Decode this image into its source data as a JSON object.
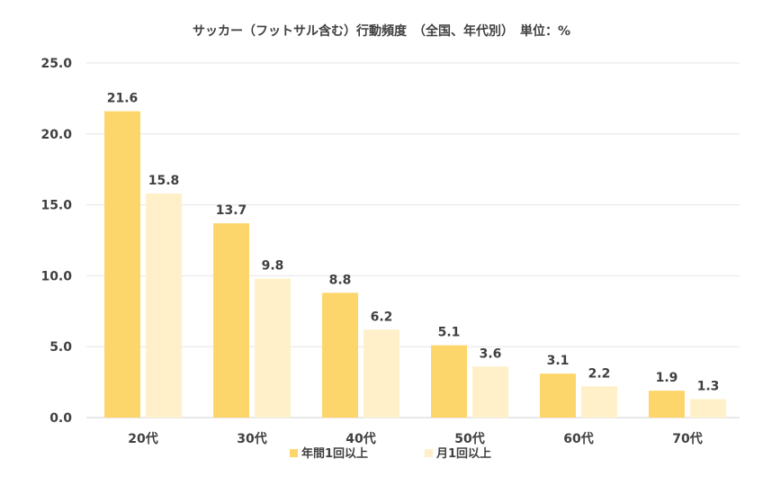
{
  "chart_data": {
    "type": "bar",
    "title": "サッカー（フットサル含む）行動頻度　（全国、年代別）　単位：%",
    "categories": [
      "20代",
      "30代",
      "40代",
      "50代",
      "60代",
      "70代"
    ],
    "series": [
      {
        "name": "年間1回以上",
        "color": "#FDD66B",
        "values": [
          21.6,
          13.7,
          8.8,
          5.1,
          3.1,
          1.9
        ]
      },
      {
        "name": "月1回以上",
        "color": "#FFF0C9",
        "values": [
          15.8,
          9.8,
          6.2,
          3.6,
          2.2,
          1.3
        ]
      }
    ],
    "yticks": [
      "0.0",
      "5.0",
      "10.0",
      "15.0",
      "20.0",
      "25.0"
    ],
    "ylim": [
      0,
      25
    ],
    "xlabel": "",
    "ylabel": "",
    "grid": true,
    "legend": "bottom",
    "data_labels": [
      [
        "21.6",
        "13.7",
        "8.8",
        "5.1",
        "3.1",
        "1.9"
      ],
      [
        "15.8",
        "9.8",
        "6.2",
        "3.6",
        "2.2",
        "1.3"
      ]
    ]
  }
}
